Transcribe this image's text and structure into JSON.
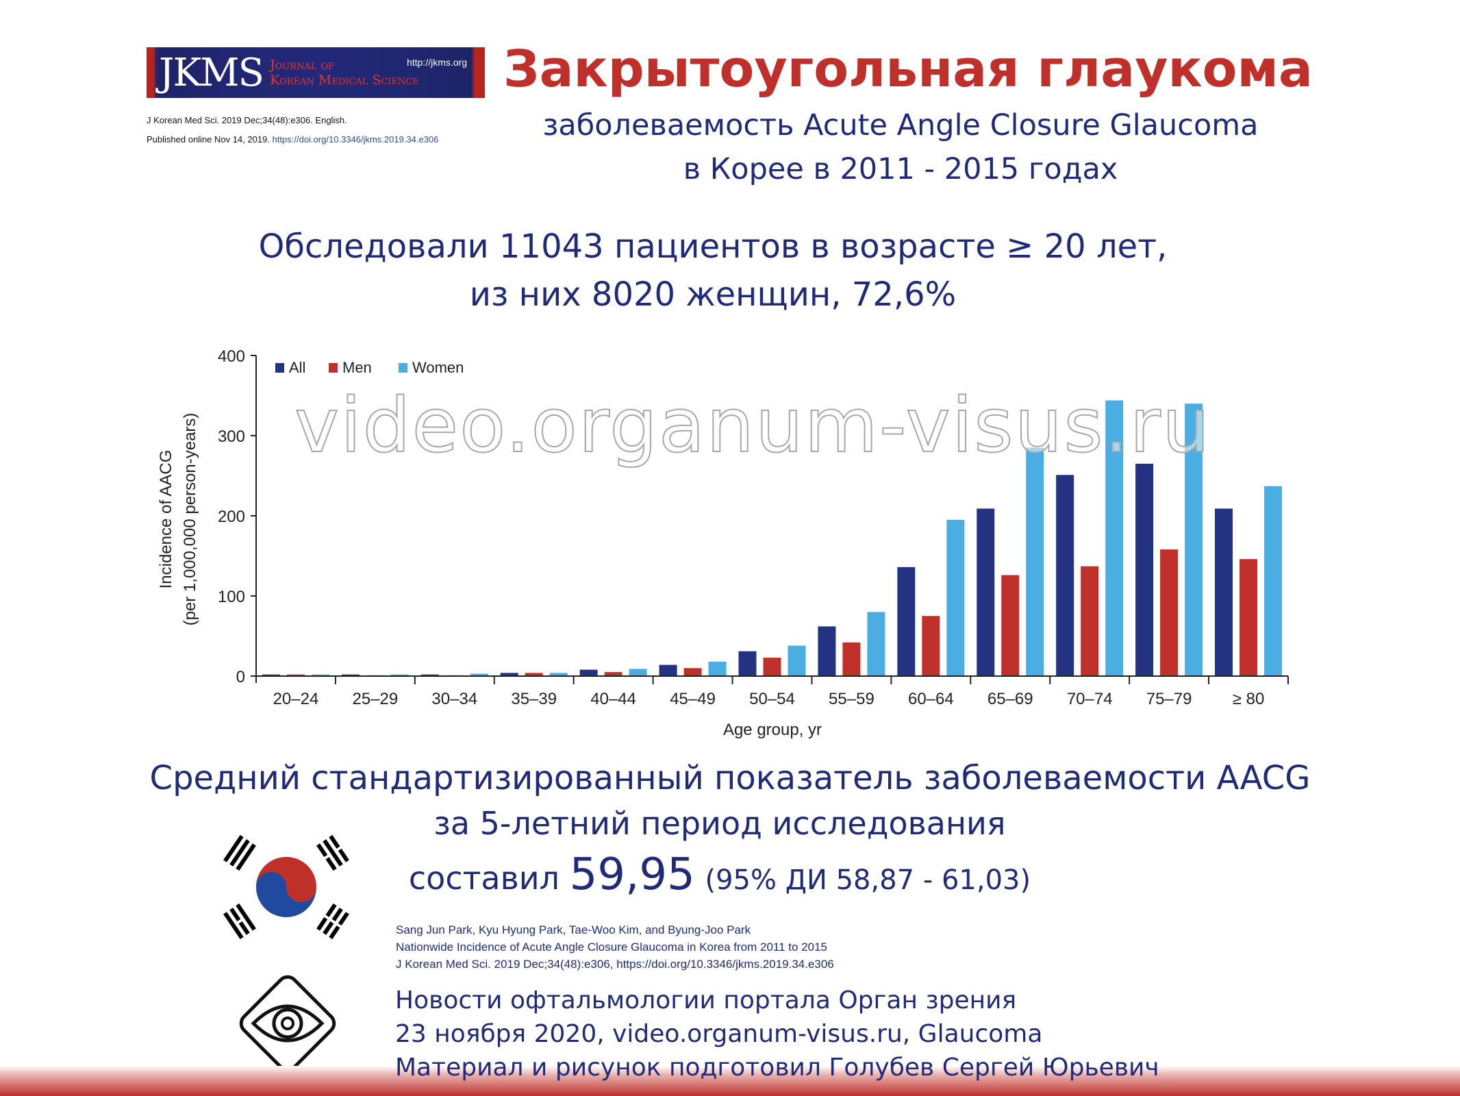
{
  "logo": {
    "abbr": "JKMS",
    "journal_line1": "Journal of",
    "journal_line2": "Korean Medical Science",
    "url": "http://jkms.org"
  },
  "ref": {
    "line1": "J Korean Med Sci. 2019 Dec;34(48):e306. English.",
    "line2_prefix": "Published online Nov 14, 2019.",
    "doi": "https://doi.org/10.3346/jkms.2019.34.e306"
  },
  "title": "Закрытоугольная глаукома",
  "subtitle1": "заболеваемость Acute Angle Closure Glaucoma",
  "subtitle2": "в Корее в 2011 - 2015 годах",
  "study1": "Обследовали 11043 пациентов в возрасте ≥ 20 лет,",
  "study2": "из них 8020 женщин, 72,6%",
  "chart_data": {
    "type": "bar",
    "title": "",
    "xlabel": "Age group, yr",
    "ylabel": "Incidence of AACG",
    "ylabel2": "(per 1,000,000 person-years)",
    "ylim": [
      0,
      400
    ],
    "yticks": [
      "0",
      "100",
      "200",
      "300",
      "400"
    ],
    "legend_position": "top-left",
    "categories": [
      "20–24",
      "25–29",
      "30–34",
      "35–39",
      "40–44",
      "45–49",
      "50–54",
      "55–59",
      "60–64",
      "65–69",
      "70–74",
      "75–79",
      "≥ 80"
    ],
    "series": [
      {
        "name": "All",
        "color": "#233381",
        "values": [
          2,
          2,
          2,
          4,
          8,
          14,
          31,
          62,
          136,
          209,
          251,
          265,
          209
        ]
      },
      {
        "name": "Men",
        "color": "#c0302a",
        "values": [
          2,
          1,
          1,
          4,
          5,
          10,
          23,
          42,
          75,
          126,
          137,
          158,
          146
        ]
      },
      {
        "name": "Women",
        "color": "#4aaee3",
        "values": [
          2,
          2,
          3,
          4,
          9,
          18,
          38,
          80,
          195,
          285,
          344,
          340,
          237
        ]
      }
    ]
  },
  "summary1": "Средний стандартизированный показатель заболеваемости AACG",
  "summary2": "за 5-летний период исследования",
  "summary3_prefix": "составил",
  "summary3_value": "59,95",
  "summary3_ci": "(95% ДИ 58,87 - 61,03)",
  "citation": {
    "authors": "Sang Jun Park, Kyu Hyung Park, Tae-Woo Kim, and Byung-Joo Park",
    "title": "Nationwide Incidence of Acute Angle Closure Glaucoma in Korea from 2011 to 2015",
    "journal": "J Korean Med Sci. 2019 Dec;34(48):e306, https://doi.org/10.3346/jkms.2019.34.e306"
  },
  "footer": {
    "line1": "Новости офтальмологии портала Орган зрения",
    "line2": "23 ноября 2020, video.organum-visus.ru, Glaucoma",
    "line3": "Материал и рисунок подготовил Голубев Сергей Юрьевич"
  },
  "watermark": "video.organum-visus.ru"
}
